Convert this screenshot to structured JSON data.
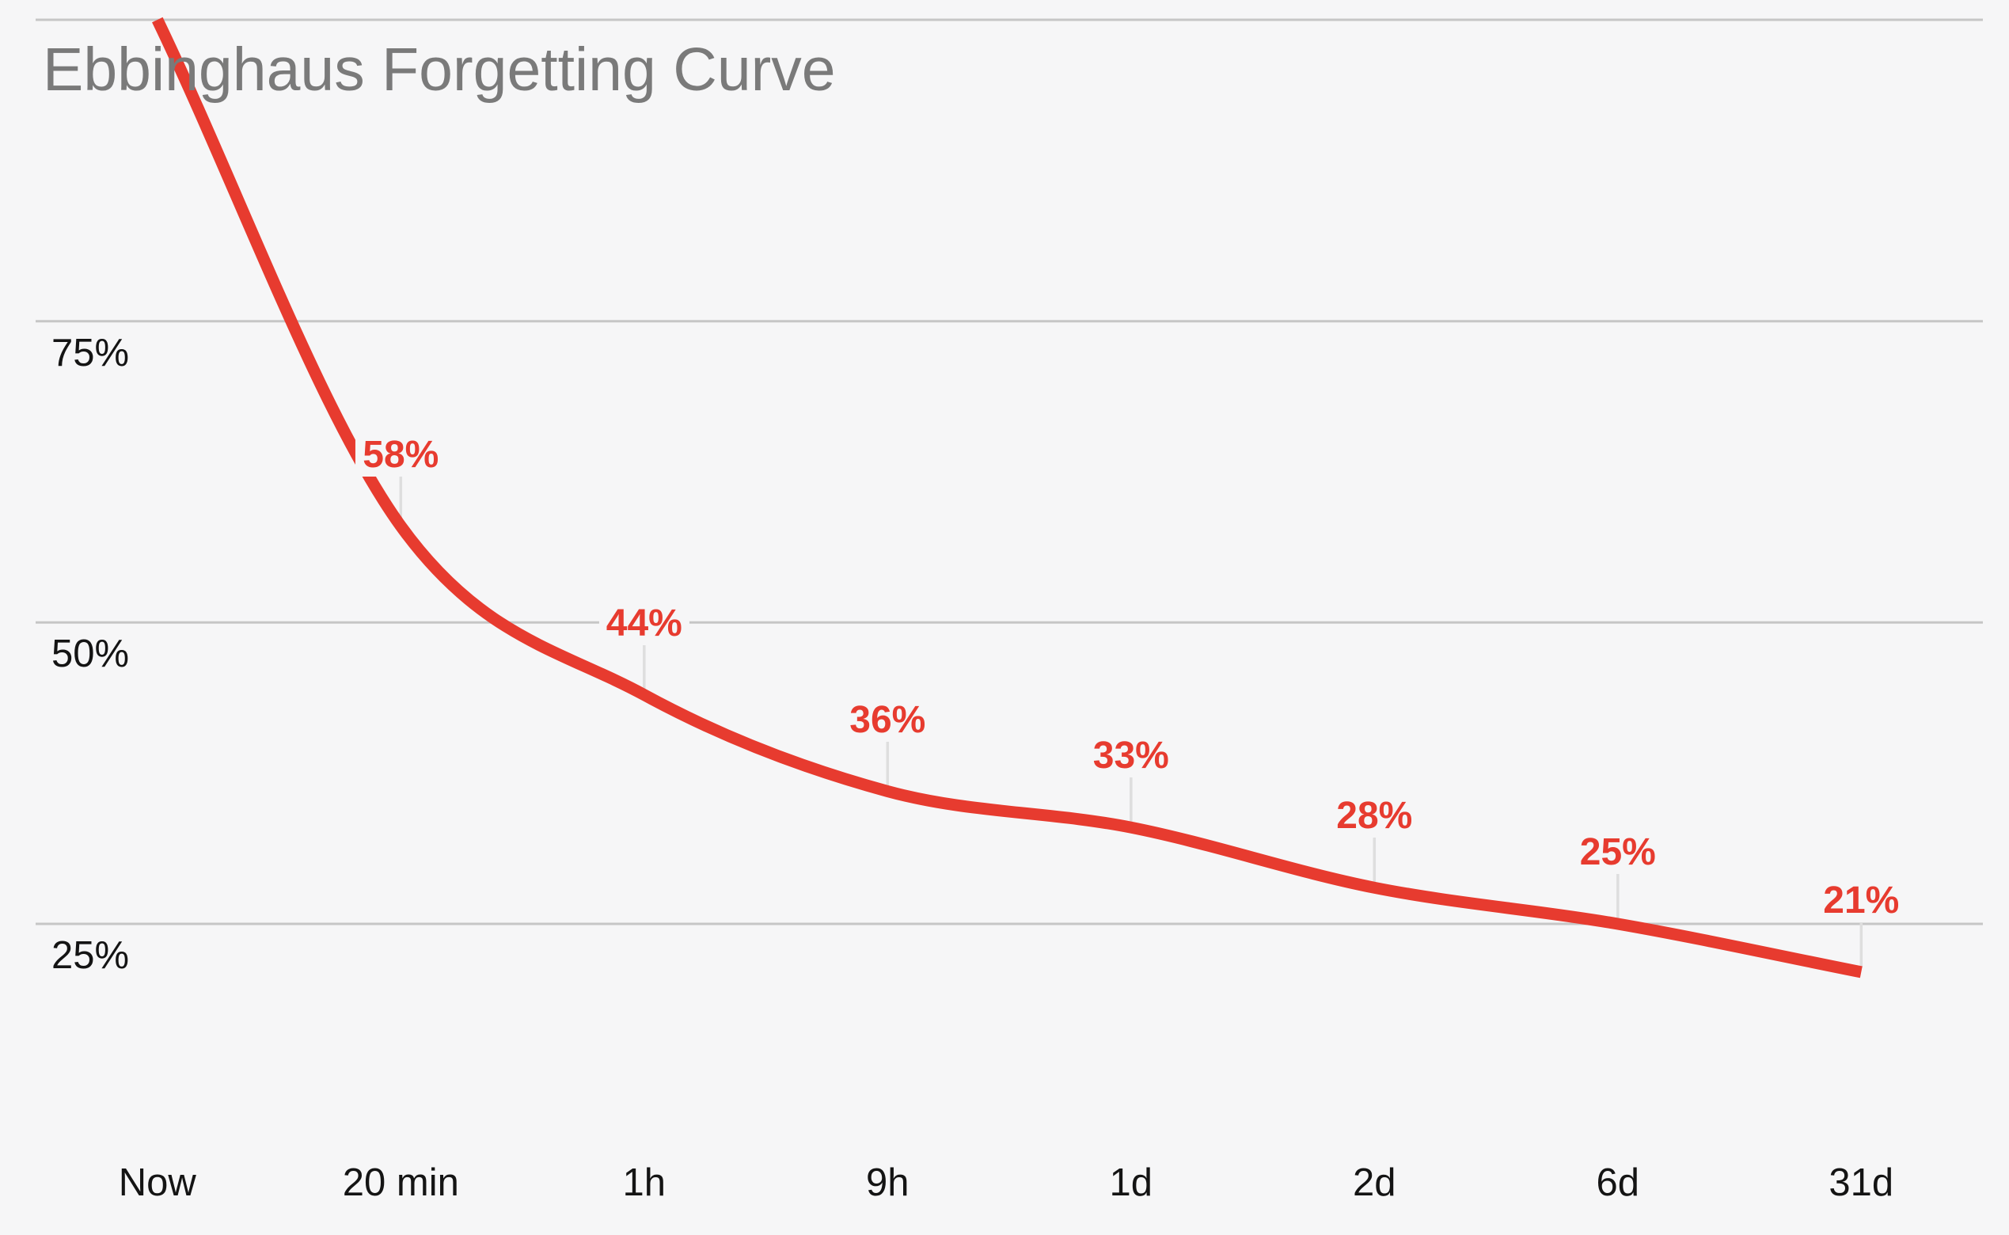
{
  "chart_data": {
    "type": "line",
    "title": "Ebbinghaus Forgetting Curve",
    "categories": [
      "Now",
      "20 min",
      "1h",
      "9h",
      "1d",
      "2d",
      "6d",
      "31d"
    ],
    "values": [
      100,
      58,
      44,
      36,
      33,
      28,
      25,
      21
    ],
    "point_labels": [
      "58%",
      "44%",
      "36%",
      "33%",
      "28%",
      "25%",
      "21%"
    ],
    "point_labels_start_index": 1,
    "y_ticks": [
      {
        "value": 75,
        "label": "75%"
      },
      {
        "value": 50,
        "label": "50%"
      },
      {
        "value": 25,
        "label": "25%"
      }
    ],
    "gridline_values": [
      100,
      75,
      50,
      25
    ],
    "ylim": [
      0,
      100
    ],
    "xlabel": "",
    "ylabel": "",
    "grid": "horizontal",
    "legend": "none",
    "line_smoothing": "monotone",
    "colors": {
      "line": "#e73b2f",
      "data_label": "#e73b2f",
      "title": "#7a7a7a",
      "axis_text": "#141414",
      "gridline": "#c6c6c6",
      "callout_line": "#dedede",
      "background": "#f6f6f7"
    }
  }
}
